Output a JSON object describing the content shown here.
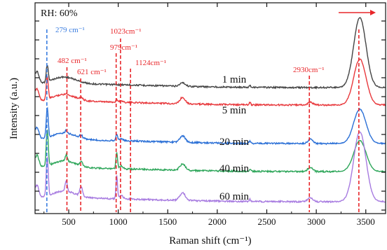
{
  "chart_data": {
    "type": "line",
    "title": "",
    "xlabel": "Raman shift (cm⁻¹)",
    "ylabel": "Intensity  (a.u.)",
    "xlim": [
      160,
      3700
    ],
    "xticks": [
      500,
      1000,
      1500,
      2000,
      2500,
      3000,
      3500
    ],
    "yticks_unlabeled": true,
    "annotation": "RH: 60%",
    "arrow_color": "#e8262a",
    "series": [
      {
        "name": "1 min",
        "color": "#444444"
      },
      {
        "name": "5 min",
        "color": "#e8383c"
      },
      {
        "name": "20 min",
        "color": "#2a6fd6"
      },
      {
        "name": "40 min",
        "color": "#2ea65a"
      },
      {
        "name": "60 min",
        "color": "#a77be0"
      }
    ],
    "peaks": [
      {
        "x": 279,
        "label": "279 cm⁻¹",
        "color": "#3a7de0"
      },
      {
        "x": 482,
        "label": "482 cm⁻¹",
        "color": "#e8262a"
      },
      {
        "x": 621,
        "label": "621  cm⁻¹",
        "color": "#e8262a"
      },
      {
        "x": 979,
        "label": "979cm⁻¹",
        "color": "#e8262a"
      },
      {
        "x": 1023,
        "label": "1023cm⁻¹",
        "color": "#e8262a"
      },
      {
        "x": 1124,
        "label": "1124cm⁻¹",
        "color": "#e8262a"
      },
      {
        "x": 2930,
        "label": "2930cm⁻¹",
        "color": "#e8262a"
      },
      {
        "x": 3430,
        "label": "",
        "color": "#e8262a"
      }
    ]
  }
}
